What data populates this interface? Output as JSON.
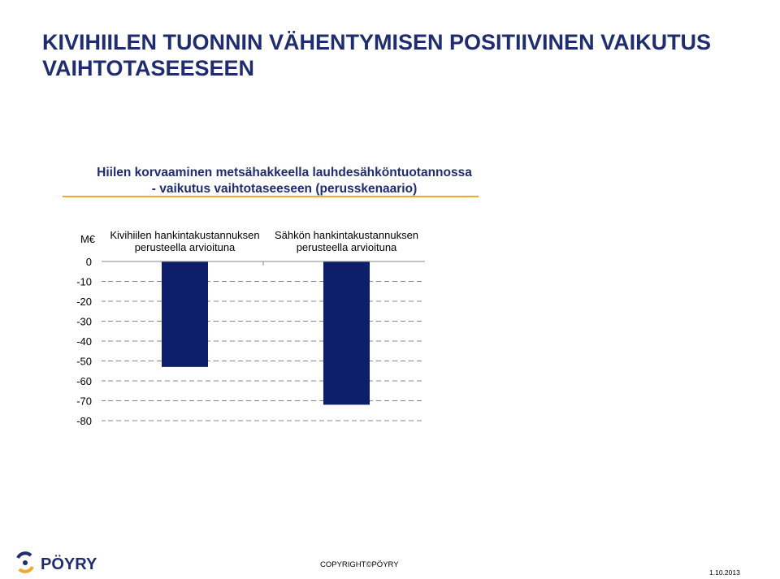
{
  "slide": {
    "title": "KIVIHIILEN TUONNIN VÄHENTYMISEN POSITIIVINEN VAIKUTUS VAIHTOTASEESEEN"
  },
  "chart_data": {
    "type": "bar",
    "title_line1": "Hiilen korvaaminen metsähakkeella lauhdesähköntuotannossa",
    "title_line2": "- vaikutus vaihtotaseeseen (perusskenaario)",
    "ylabel": "M€",
    "ylim": [
      -80,
      0
    ],
    "yticks": [
      0,
      -10,
      -20,
      -30,
      -40,
      -50,
      -60,
      -70,
      -80
    ],
    "grid": true,
    "categories": [
      [
        "Kivihiilen hankintakustannuksen",
        "perusteella arvioituna"
      ],
      [
        "Sähkön hankintakustannuksen",
        "perusteella arvioituna"
      ]
    ],
    "values": [
      -53,
      -72
    ],
    "bar_color": "#0d1f6b",
    "title_color": "#1f2d6e",
    "accent_color": "#f0a830"
  },
  "footer": {
    "logo_text": "PÖYRY",
    "copyright": "COPYRIGHT©PÖYRY",
    "date": "1.10.2013"
  }
}
